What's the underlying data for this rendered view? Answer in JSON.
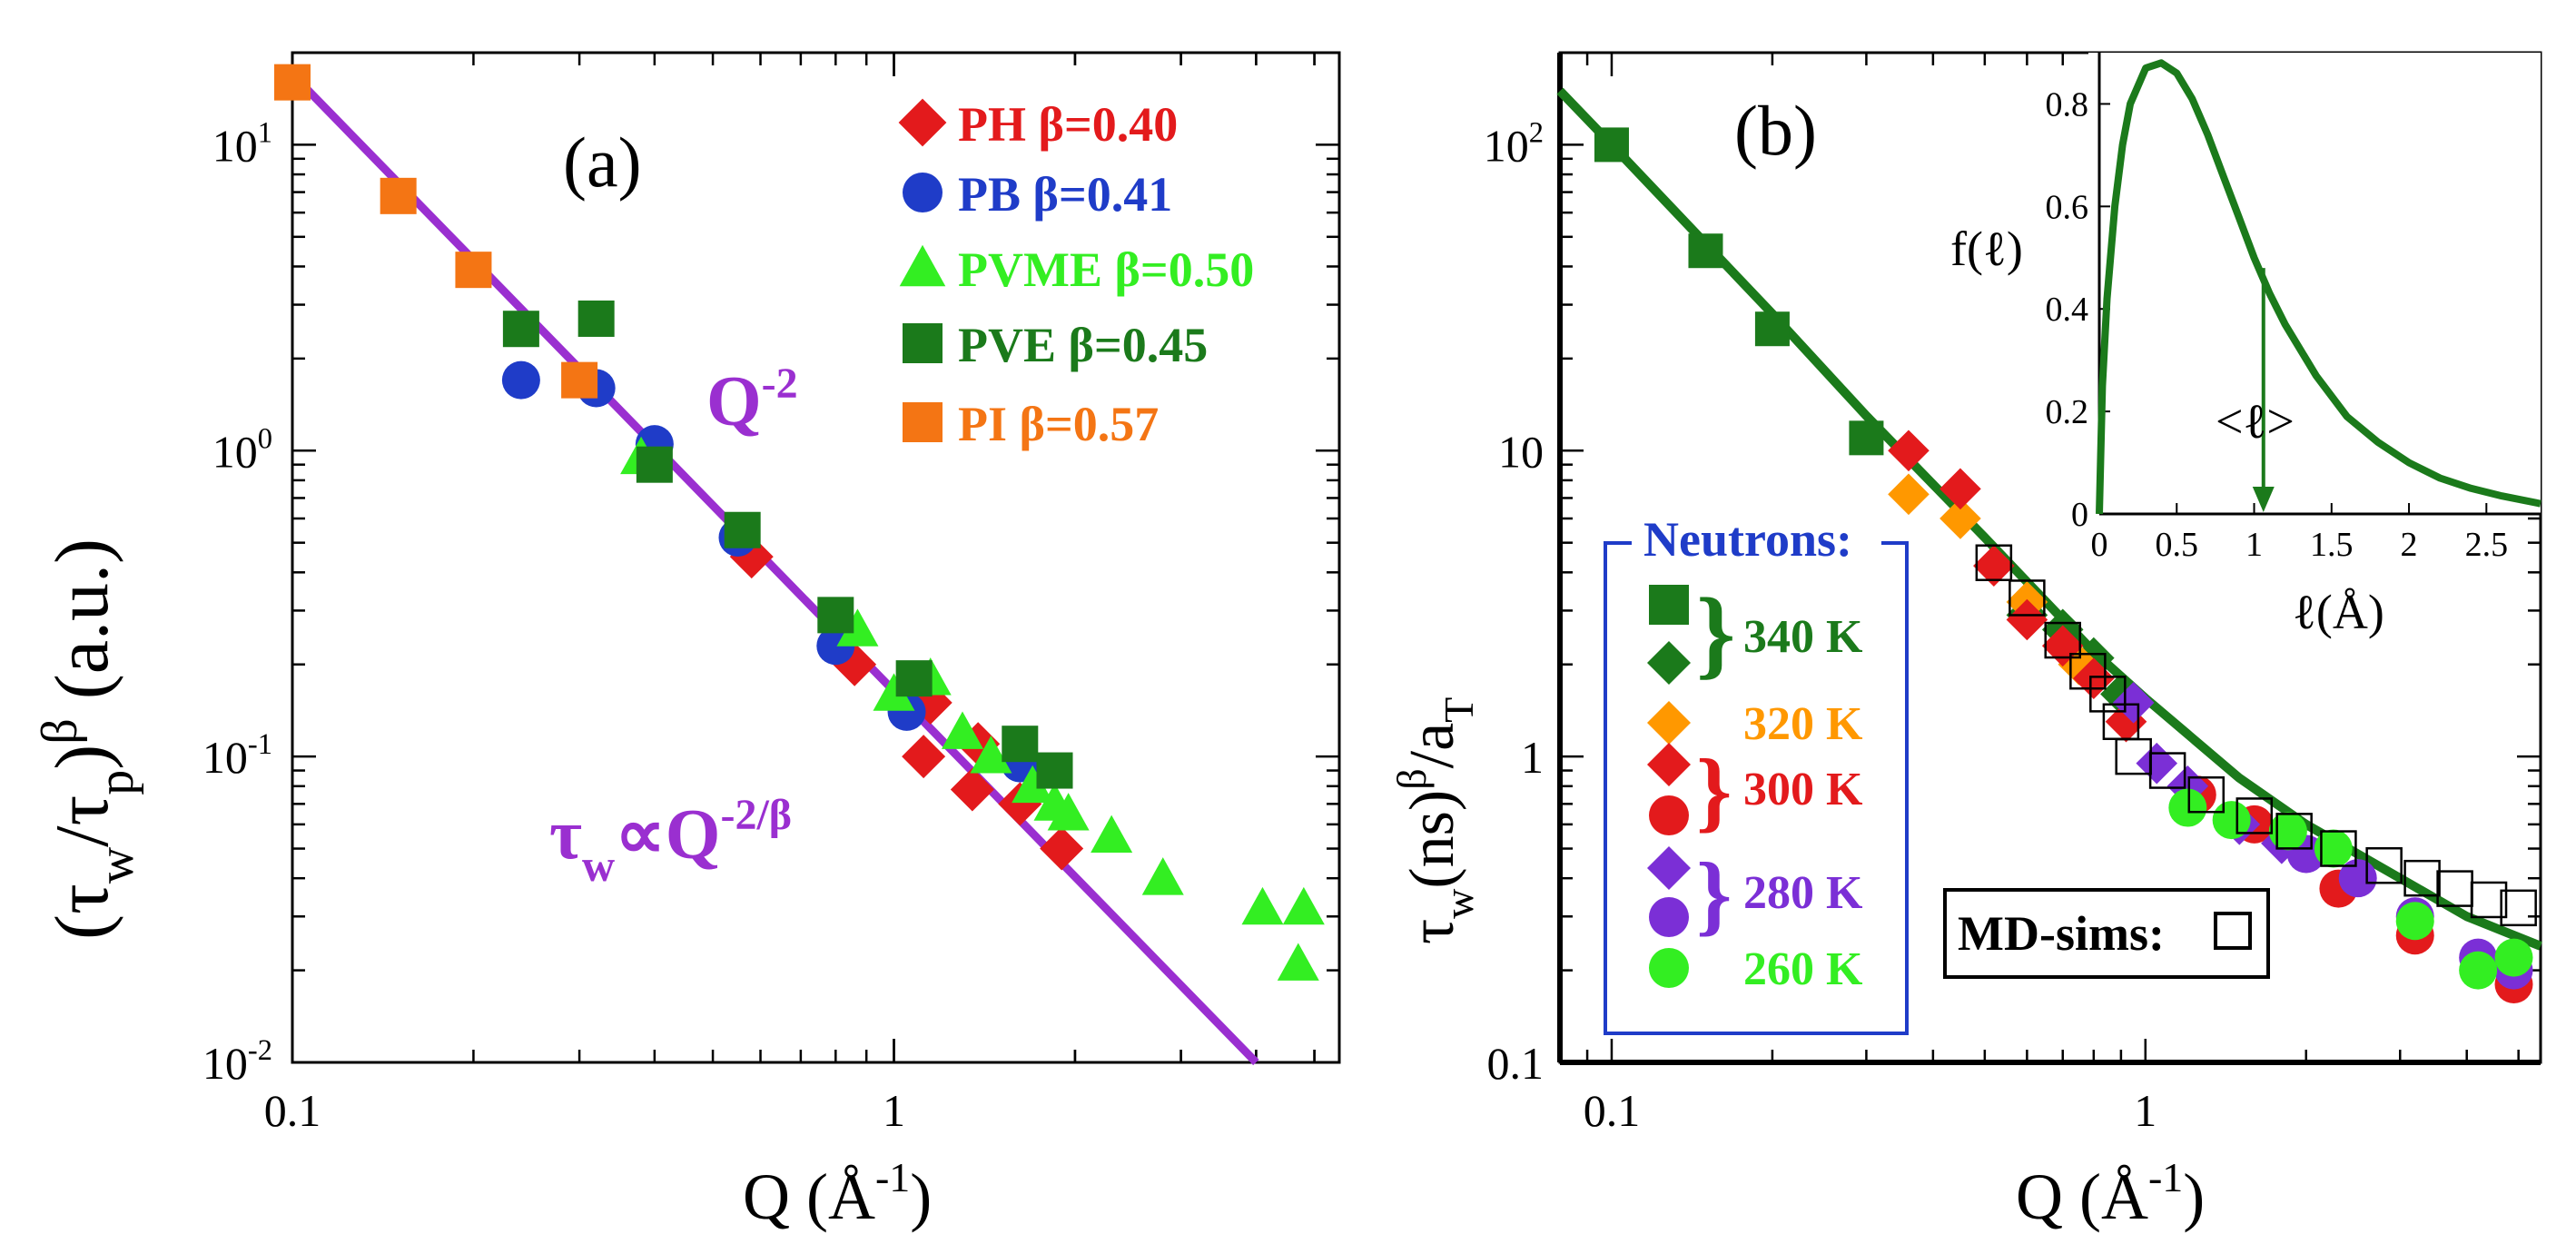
{
  "figure": {
    "panel_a_label": "(a)",
    "panel_b_label": "(b)",
    "x_axis_prefix": "Q (Å",
    "x_axis_exp": "-1",
    "x_axis_suffix": ")"
  },
  "panel_a": {
    "ylabel": {
      "open": "(τ",
      "w": "w",
      "slash": "/τ",
      "p": "p",
      "close": ")",
      "beta": "β",
      "units": " (a.u.)"
    },
    "q2_base": "Q",
    "q2_exp": "-2",
    "law_tau": "τ",
    "law_w": "w",
    "law_main": "∝Q",
    "law_exp": "-2/β",
    "colors": {
      "PH": "#e31a1c",
      "PB": "#1f3cc8",
      "PVME": "#33ee22",
      "PVE": "#1b7a1b",
      "PI": "#f47514",
      "fit": "#9a2fd0"
    }
  },
  "panel_b": {
    "ylabel": {
      "tau": "τ",
      "w": "w",
      "ns": "(ns)",
      "beta": "β",
      "slash": "/a",
      "T": "T"
    },
    "neutrons_title": "Neutrons:",
    "md_label": "MD-sims:",
    "temps": [
      "340 K",
      "320 K",
      "300 K",
      "280 K",
      "260 K"
    ],
    "colors": {
      "t340": "#1b7a1b",
      "t320": "#ff9800",
      "t300": "#e31a1c",
      "t280": "#7b2fd6",
      "t260": "#33ee22",
      "fit": "#1b7a1b",
      "box": "#1f3cc8"
    },
    "inset": {
      "ylabel": "f(ℓ)",
      "xlabel": "ℓ(Å)",
      "mean_label": "<ℓ>"
    }
  },
  "chart_data": [
    {
      "type": "scatter",
      "title": "(a)",
      "xlabel": "Q (Å^-1)",
      "ylabel": "(τw/τp)^β (a.u.)",
      "xscale": "log",
      "yscale": "log",
      "xlim": [
        0.1,
        5.5
      ],
      "ylim": [
        0.01,
        20
      ],
      "x_ticks": [
        "0.1",
        "1"
      ],
      "y_ticks": [
        "10^-2",
        "10^-1",
        "10^0",
        "10^1"
      ],
      "series": [
        {
          "name": "PH β=0.40",
          "marker": "diamond",
          "color": "#e31a1c",
          "points": [
            [
              0.58,
              0.45
            ],
            [
              0.86,
              0.2
            ],
            [
              1.12,
              0.1
            ],
            [
              1.15,
              0.15
            ],
            [
              1.35,
              0.078
            ],
            [
              1.38,
              0.11
            ],
            [
              1.62,
              0.07
            ],
            [
              1.9,
              0.05
            ]
          ]
        },
        {
          "name": "PB β=0.41",
          "marker": "circle",
          "color": "#1f3cc8",
          "points": [
            [
              0.24,
              1.7
            ],
            [
              0.32,
              1.6
            ],
            [
              0.4,
              1.05
            ],
            [
              0.55,
              0.52
            ],
            [
              0.8,
              0.23
            ],
            [
              1.05,
              0.14
            ],
            [
              1.62,
              0.095
            ]
          ]
        },
        {
          "name": "PVME β=0.50",
          "marker": "triangle",
          "color": "#33ee22",
          "points": [
            [
              0.38,
              0.95
            ],
            [
              0.87,
              0.26
            ],
            [
              1.0,
              0.16
            ],
            [
              1.15,
              0.18
            ],
            [
              1.3,
              0.12
            ],
            [
              1.45,
              0.1
            ],
            [
              1.7,
              0.08
            ],
            [
              1.85,
              0.07
            ],
            [
              1.95,
              0.065
            ],
            [
              2.3,
              0.055
            ],
            [
              2.8,
              0.04
            ],
            [
              4.1,
              0.032
            ],
            [
              4.8,
              0.032
            ],
            [
              4.7,
              0.021
            ]
          ]
        },
        {
          "name": "PVE β=0.45",
          "marker": "square",
          "color": "#1b7a1b",
          "points": [
            [
              0.24,
              2.5
            ],
            [
              0.32,
              2.7
            ],
            [
              0.4,
              0.9
            ],
            [
              0.56,
              0.55
            ],
            [
              0.8,
              0.29
            ],
            [
              1.08,
              0.18
            ],
            [
              1.62,
              0.11
            ],
            [
              1.85,
              0.09
            ]
          ]
        },
        {
          "name": "PI β=0.57",
          "marker": "square",
          "color": "#f47514",
          "points": [
            [
              0.1,
              16
            ],
            [
              0.15,
              6.8
            ],
            [
              0.2,
              3.9
            ],
            [
              0.3,
              1.7
            ]
          ]
        }
      ],
      "fit": {
        "label": "τw∝Q^-2/β",
        "slope_label": "Q^-2",
        "x": [
          0.1,
          4.0
        ],
        "y": [
          17,
          0.01
        ]
      }
    },
    {
      "type": "scatter",
      "title": "(b)",
      "xlabel": "Q (Å^-1)",
      "ylabel": "τw(ns)^β/aT",
      "xscale": "log",
      "yscale": "log",
      "xlim": [
        0.08,
        5.5
      ],
      "ylim": [
        0.1,
        200
      ],
      "x_ticks": [
        "0.1",
        "1"
      ],
      "y_ticks": [
        "0.1",
        "1",
        "10",
        "10^2"
      ],
      "series": [
        {
          "name": "340 K (squares)",
          "marker": "square",
          "color": "#1b7a1b",
          "points": [
            [
              0.1,
              100
            ],
            [
              0.15,
              45
            ],
            [
              0.2,
              25
            ],
            [
              0.3,
              11
            ]
          ]
        },
        {
          "name": "340 K (diamonds)",
          "marker": "diamond",
          "color": "#1b7a1b",
          "points": [
            [
              0.6,
              2.9
            ],
            [
              0.7,
              2.6
            ],
            [
              0.8,
              2.1
            ],
            [
              0.9,
              1.6
            ]
          ]
        },
        {
          "name": "320 K",
          "marker": "diamond",
          "color": "#ff9800",
          "points": [
            [
              0.36,
              7.2
            ],
            [
              0.45,
              6.0
            ],
            [
              0.6,
              3.2
            ],
            [
              0.75,
              2.0
            ]
          ]
        },
        {
          "name": "300 K (diamonds)",
          "marker": "diamond",
          "color": "#e31a1c",
          "points": [
            [
              0.36,
              10
            ],
            [
              0.45,
              7.5
            ],
            [
              0.52,
              4.2
            ],
            [
              0.6,
              2.8
            ],
            [
              0.7,
              2.3
            ],
            [
              0.8,
              1.8
            ],
            [
              0.92,
              1.3
            ]
          ]
        },
        {
          "name": "300 K (circles)",
          "marker": "circle",
          "color": "#e31a1c",
          "points": [
            [
              1.25,
              0.75
            ],
            [
              1.6,
              0.6
            ],
            [
              2.3,
              0.37
            ],
            [
              3.2,
              0.26
            ],
            [
              4.9,
              0.18
            ]
          ]
        },
        {
          "name": "280 K (diamonds)",
          "marker": "diamond",
          "color": "#7b2fd6",
          "points": [
            [
              0.95,
              1.5
            ],
            [
              1.05,
              0.95
            ],
            [
              1.2,
              0.8
            ],
            [
              1.5,
              0.6
            ],
            [
              1.8,
              0.52
            ]
          ]
        },
        {
          "name": "280 K (circles)",
          "marker": "circle",
          "color": "#7b2fd6",
          "points": [
            [
              2.0,
              0.48
            ],
            [
              2.5,
              0.4
            ],
            [
              3.2,
              0.3
            ],
            [
              4.2,
              0.22
            ],
            [
              4.9,
              0.2
            ]
          ]
        },
        {
          "name": "260 K",
          "marker": "circle",
          "color": "#33ee22",
          "points": [
            [
              1.2,
              0.68
            ],
            [
              1.45,
              0.62
            ],
            [
              1.85,
              0.57
            ],
            [
              2.25,
              0.5
            ],
            [
              3.2,
              0.29
            ],
            [
              4.2,
              0.2
            ],
            [
              4.9,
              0.22
            ]
          ]
        },
        {
          "name": "MD-sims",
          "marker": "open-square",
          "color": "#000000",
          "points": [
            [
              0.52,
              4.3
            ],
            [
              0.6,
              3.3
            ],
            [
              0.7,
              2.4
            ],
            [
              0.78,
              1.9
            ],
            [
              0.85,
              1.6
            ],
            [
              0.9,
              1.3
            ],
            [
              0.95,
              1.0
            ],
            [
              1.1,
              0.9
            ],
            [
              1.3,
              0.75
            ],
            [
              1.6,
              0.64
            ],
            [
              1.9,
              0.57
            ],
            [
              2.3,
              0.5
            ],
            [
              2.8,
              0.44
            ],
            [
              3.3,
              0.4
            ],
            [
              3.8,
              0.37
            ],
            [
              4.4,
              0.34
            ],
            [
              5.0,
              0.32
            ]
          ]
        }
      ],
      "fit": {
        "x": [
          0.08,
          0.1,
          0.2,
          0.3,
          0.5,
          0.8,
          1.0,
          1.5,
          2.0,
          3.0,
          4.0,
          5.5
        ],
        "y": [
          150,
          100,
          28,
          13,
          5.2,
          2.2,
          1.55,
          0.85,
          0.6,
          0.4,
          0.3,
          0.24
        ]
      },
      "inset": {
        "type": "line",
        "xlabel": "ℓ(Å)",
        "ylabel": "f(ℓ)",
        "xlim": [
          0,
          2.85
        ],
        "ylim": [
          0,
          0.9
        ],
        "x_ticks": [
          "0",
          "0.5",
          "1",
          "1.5",
          "2",
          "2.5"
        ],
        "y_ticks": [
          "0",
          "0.2",
          "0.4",
          "0.6",
          "0.8"
        ],
        "curve": {
          "x": [
            0,
            0.02,
            0.05,
            0.1,
            0.15,
            0.2,
            0.3,
            0.4,
            0.5,
            0.6,
            0.7,
            0.8,
            0.9,
            1.0,
            1.1,
            1.2,
            1.4,
            1.6,
            1.8,
            2.0,
            2.2,
            2.4,
            2.6,
            2.85
          ],
          "y": [
            0,
            0.25,
            0.42,
            0.6,
            0.72,
            0.8,
            0.87,
            0.88,
            0.86,
            0.81,
            0.74,
            0.66,
            0.58,
            0.5,
            0.43,
            0.37,
            0.27,
            0.19,
            0.14,
            0.1,
            0.07,
            0.05,
            0.035,
            0.02
          ]
        },
        "mean_value": 1.06,
        "mean_label": "<ℓ>"
      }
    }
  ]
}
